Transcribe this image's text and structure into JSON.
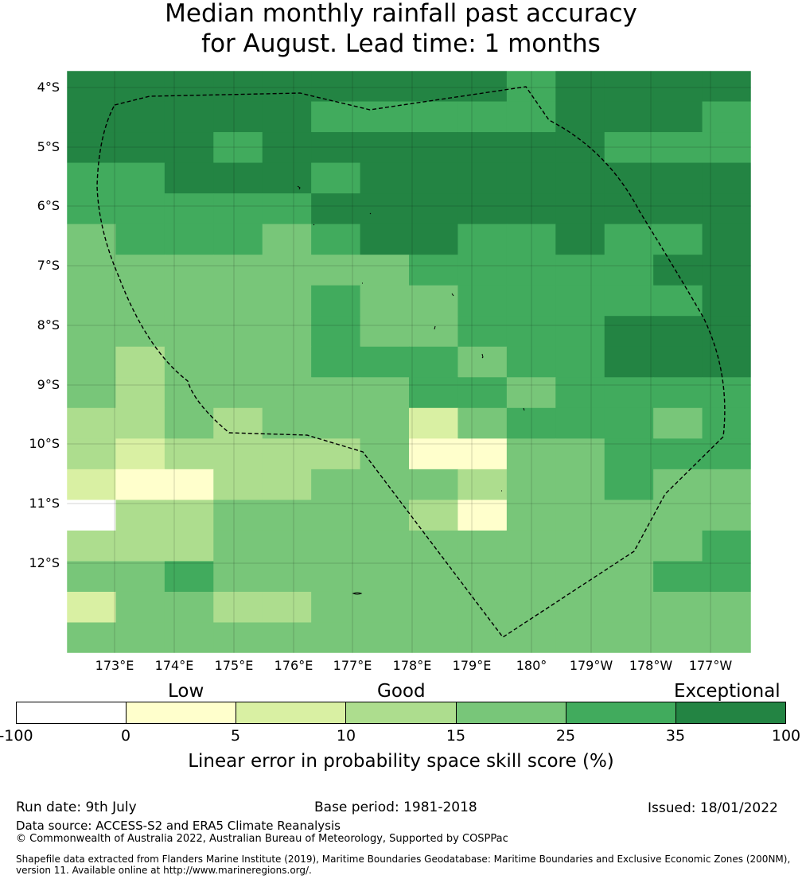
{
  "title": {
    "line1": "Median monthly rainfall past accuracy",
    "line2": "for August. Lead time: 1 months"
  },
  "map": {
    "lat_labels": [
      "4°S",
      "5°S",
      "6°S",
      "7°S",
      "8°S",
      "9°S",
      "10°S",
      "11°S",
      "12°S"
    ],
    "lon_labels": [
      "173°E",
      "174°E",
      "175°E",
      "176°E",
      "177°E",
      "178°E",
      "179°E",
      "180°",
      "179°W",
      "178°W",
      "177°W"
    ],
    "boundary_color": "#000000",
    "grid": true,
    "skill_bins_rows": [
      "66666666656666",
      "66666555556665",
      "66656666666555",
      "55666566666666",
      "55555666666666",
      "45554566556556",
      "44444445555566",
      "44444544555556",
      "44444544555666",
      "43444555455666",
      "43444445545555",
      "33434442455545",
      "32333341144555",
      "21133444344544",
      "03344443144444",
      "33344444444445",
      "44544444444455",
      "24433444444444",
      "44444444444444"
    ]
  },
  "legend": {
    "categories": [
      "Low",
      "Good",
      "Exceptional"
    ],
    "bin_colors": [
      "#ffffff",
      "#ffffcc",
      "#d9f0a3",
      "#addd8e",
      "#78c679",
      "#41ab5d",
      "#238443"
    ],
    "ticks": [
      "-100",
      "0",
      "5",
      "10",
      "15",
      "25",
      "35",
      "100"
    ],
    "label": "Linear error in probability space skill score (%)"
  },
  "footer": {
    "run_date": "Run date: 9th July",
    "base_period": "Base period: 1981-2018",
    "issued": "Issued: 18/01/2022",
    "data_source": "Data source: ACCESS-S2 and ERA5 Climate Reanalysis",
    "copyright": "© Commonwealth of Australia 2022, Australian Bureau of Meteorology, Supported by COSPPac",
    "shapefile_line1": "Shapefile data extracted from Flanders Marine Institute (2019), Maritime Boundaries Geodatabase: Maritime Boundaries and Exclusive Economic Zones (200NM),",
    "shapefile_line2": "version 11. Available online at http://www.marineregions.org/."
  }
}
